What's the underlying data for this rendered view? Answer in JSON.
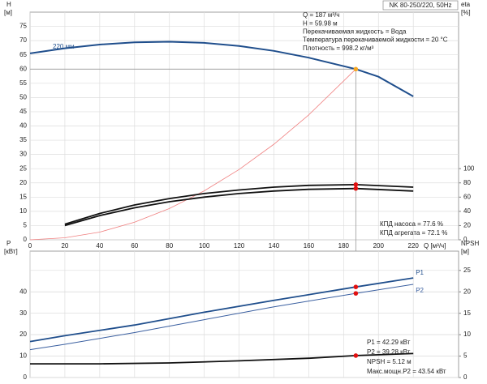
{
  "chart_data": [
    {
      "type": "line",
      "title": "NK 80-250/220, 50Hz",
      "ylabel": "H",
      "yunit": "[м]",
      "y2label": "eta",
      "y2unit": "[%]",
      "xlabel": "Q [м³/ч]",
      "xlim": [
        0,
        246
      ],
      "xticks": [
        0,
        20,
        40,
        60,
        80,
        100,
        120,
        140,
        160,
        180,
        200,
        220
      ],
      "ylim": [
        0,
        80
      ],
      "yticks": [
        0,
        5,
        10,
        15,
        20,
        25,
        30,
        35,
        40,
        45,
        50,
        55,
        60,
        65,
        70,
        75
      ],
      "y2lim": [
        0,
        320
      ],
      "y2ticks": [
        0,
        20,
        40,
        60,
        80,
        100
      ],
      "grid": true,
      "series": [
        {
          "name": "220 мм",
          "color": "#1f4e8c",
          "width": 2,
          "x": [
            0,
            20,
            40,
            60,
            80,
            100,
            120,
            140,
            160,
            187,
            200,
            220
          ],
          "values": [
            65.5,
            67.3,
            68.6,
            69.4,
            69.6,
            69.2,
            68.1,
            66.4,
            64,
            59.98,
            57.3,
            50.4
          ]
        },
        {
          "color": "#f08080",
          "width": 0.8,
          "x": [
            0,
            20,
            40,
            60,
            80,
            100,
            120,
            140,
            160,
            187
          ],
          "values": [
            0,
            0.7,
            2.7,
            6.2,
            11,
            17.2,
            24.7,
            33.6,
            43.9,
            59.98
          ]
        },
        {
          "color": "#111111",
          "width": 1.8,
          "axis": "y2",
          "x": [
            20,
            40,
            60,
            80,
            100,
            120,
            140,
            160,
            187,
            220
          ],
          "values": [
            22,
            37,
            49,
            58,
            65,
            70,
            74,
            76.5,
            77.6,
            74
          ]
        },
        {
          "color": "#111111",
          "width": 1.8,
          "axis": "y2",
          "x": [
            20,
            40,
            60,
            80,
            100,
            120,
            140,
            160,
            187,
            220
          ],
          "values": [
            20,
            34,
            45,
            53.5,
            60,
            65,
            68.5,
            71,
            72.1,
            68.5
          ]
        }
      ],
      "points": [
        {
          "x": 187,
          "y": 59.98,
          "color": "#f5a623",
          "guide": true
        },
        {
          "x": 187,
          "y": 77.6,
          "axis": "y2",
          "color": "#e01010"
        },
        {
          "x": 187,
          "y": 72.1,
          "axis": "y2",
          "color": "#e01010"
        }
      ],
      "annotations": [
        "Q = 187 м³/ч",
        "H = 59.98 м",
        "Перекачиваемая жидкость = Вода",
        "Температура перекачиваемой жидкости = 20 °C",
        "Плотность = 998.2 кг/м³"
      ],
      "annotations2": [
        "КПД насоса = 77.6 %",
        "КПД агрегата = 72.1 %"
      ]
    },
    {
      "type": "line",
      "ylabel": "P",
      "yunit": "[кВт]",
      "y2label": "NPSH",
      "y2unit": "[м]",
      "xlim": [
        0,
        246
      ],
      "ylim": [
        0,
        59
      ],
      "yticks": [
        0,
        10,
        20,
        30,
        40
      ],
      "y2lim": [
        0,
        29.5
      ],
      "y2ticks": [
        0,
        5,
        10,
        15,
        20,
        25
      ],
      "grid": true,
      "series": [
        {
          "name": "P1",
          "color": "#1f4e8c",
          "width": 1.8,
          "x": [
            0,
            20,
            60,
            100,
            140,
            187,
            220
          ],
          "values": [
            16.8,
            19.5,
            24.5,
            30.5,
            36,
            42.29,
            46.5
          ]
        },
        {
          "name": "P2",
          "color": "#3a5fa0",
          "width": 1,
          "x": [
            0,
            20,
            60,
            100,
            140,
            187,
            220
          ],
          "values": [
            13,
            15.5,
            21,
            27,
            33,
            39.28,
            43.5
          ]
        },
        {
          "color": "#111111",
          "width": 1.8,
          "axis": "y2",
          "x": [
            0,
            40,
            80,
            120,
            160,
            187,
            220
          ],
          "values": [
            3.2,
            3.2,
            3.4,
            3.9,
            4.5,
            5.12,
            5.6
          ]
        }
      ],
      "points": [
        {
          "x": 187,
          "y": 42.29,
          "color": "#e01010"
        },
        {
          "x": 187,
          "y": 39.28,
          "color": "#e01010"
        },
        {
          "x": 187,
          "y": 5.12,
          "axis": "y2",
          "color": "#e01010"
        }
      ],
      "annotations": [
        "P1 = 42.29 кВт",
        "P2 = 39.28 кВт",
        "NPSH = 5.12 м",
        "Макс.мощн.P2 = 43.54 кВт"
      ]
    }
  ]
}
